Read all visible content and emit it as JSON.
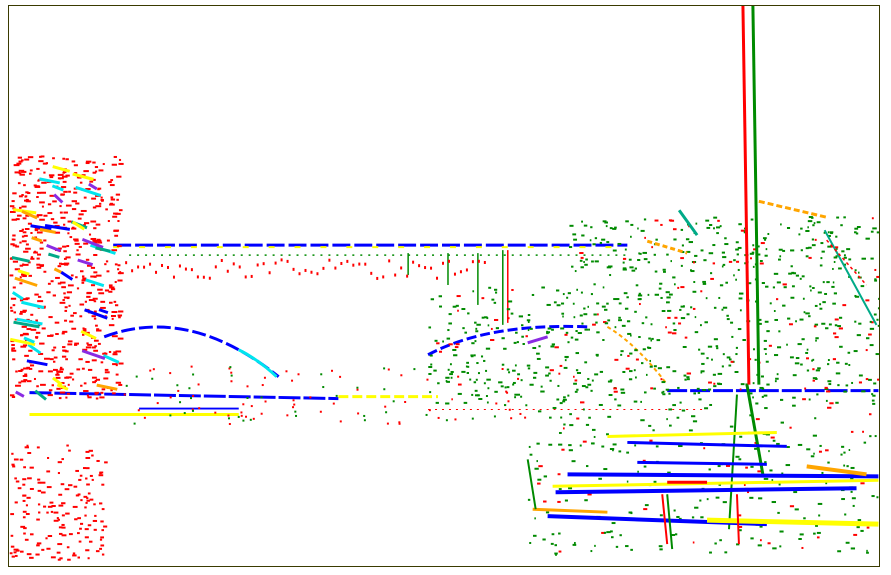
{
  "image": {
    "kind": "edge-map",
    "background": "#ffffff",
    "border_color": "#3a3a00",
    "edge_colors": {
      "red": "#ff0000",
      "green": "#008a00",
      "blue": "#0000ff",
      "yellow": "#ffff00",
      "orange": "#ffa500",
      "cyan": "#00e5ee",
      "purple": "#8a2be2",
      "teal": "#00aa88"
    }
  }
}
